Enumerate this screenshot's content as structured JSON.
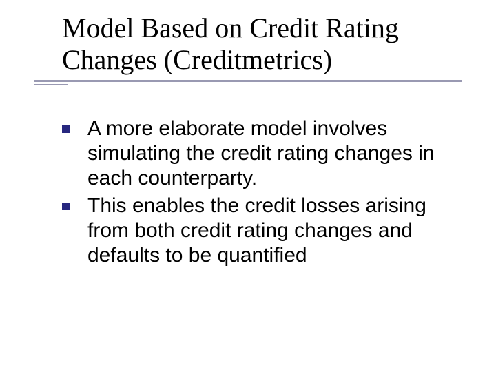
{
  "title": "Model Based on Credit Rating Changes (Creditmetrics)",
  "title_color": "#000000",
  "title_fontsize": 40,
  "title_font_family": "Times New Roman",
  "underline_color": "#9999b2",
  "underline_long_width": 620,
  "underline_short_width": 48,
  "bullets": [
    "A more elaborate model involves simulating the credit rating changes in each counterparty.",
    "This enables the credit losses arising from both credit rating changes and defaults to be quantified"
  ],
  "bullet_marker_color": "#27277f",
  "bullet_marker_size": 11,
  "bullet_text_color": "#000000",
  "bullet_fontsize": 30,
  "bullet_font_family": "Arial",
  "background_color": "#ffffff",
  "slide_width": 720,
  "slide_height": 540
}
